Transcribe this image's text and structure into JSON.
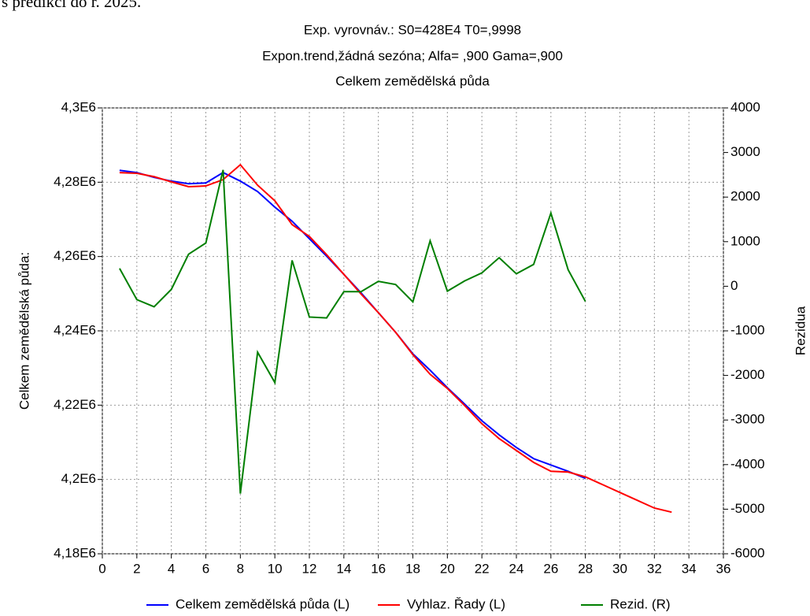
{
  "page_text": "s predikcí do r. 2025.",
  "chart_data": {
    "type": "line",
    "title": "Exp. vyrovnáv.:  S0=428E4 T0=,9998",
    "subtitle": "Expon.trend,žádná sezóna; Alfa=  ,900 Gama=,900",
    "subtitle2": "Celkem zemědělská půda",
    "y_label": "Celkem zemědělská půda:",
    "y2_label": "Rezidua",
    "x": [
      1,
      2,
      3,
      4,
      5,
      6,
      7,
      8,
      9,
      10,
      11,
      12,
      13,
      14,
      15,
      16,
      17,
      18,
      19,
      20,
      21,
      22,
      23,
      24,
      25,
      26,
      27,
      28,
      29,
      30,
      31,
      32,
      33
    ],
    "series": [
      {
        "name": "Celkem zemědělská půda (L)",
        "color": "#0000ff",
        "axis": "y",
        "values": [
          4283200,
          4282600,
          4281300,
          4280300,
          4279600,
          4279800,
          4282600,
          4280300,
          4277500,
          4273300,
          4269500,
          4264800,
          4260100,
          4255200,
          4250200,
          4244900,
          4239600,
          4233800,
          4229400,
          4224700,
          4220300,
          4215800,
          4212000,
          4208600,
          4205600,
          4203900,
          4202200,
          4200300,
          null,
          null,
          null,
          null,
          null
        ]
      },
      {
        "name": "Vyhlaz. Řady (L)",
        "color": "#ff0000",
        "axis": "y",
        "values": [
          4282600,
          4282400,
          4281500,
          4280100,
          4278800,
          4279000,
          4280700,
          4284700,
          4279200,
          4275000,
          4268600,
          4265400,
          4260500,
          4255200,
          4249900,
          4244900,
          4239600,
          4233600,
          4228300,
          4224500,
          4219900,
          4215000,
          4211000,
          4207800,
          4204600,
          4202200,
          4202000,
          4200700,
          4198600,
          4196500,
          4194400,
          4192300,
          4191200
        ]
      },
      {
        "name": "Rezid. (R)",
        "color": "#007f00",
        "axis": "y2",
        "values": [
          400,
          -300,
          -460,
          -70,
          720,
          970,
          2610,
          -4650,
          -1480,
          -2160,
          580,
          -690,
          -710,
          -120,
          -120,
          110,
          40,
          -350,
          1020,
          -110,
          120,
          300,
          640,
          280,
          490,
          1640,
          370,
          -340,
          null,
          null,
          null,
          null,
          null
        ]
      }
    ],
    "xlim": [
      0,
      36
    ],
    "xticks": [
      0,
      2,
      4,
      6,
      8,
      10,
      12,
      14,
      16,
      18,
      20,
      22,
      24,
      26,
      28,
      30,
      32,
      34,
      36
    ],
    "ylim": [
      4180000,
      4300000
    ],
    "yticks": [
      {
        "value": 4180000,
        "label": "4,18E6"
      },
      {
        "value": 4200000,
        "label": "4,2E6"
      },
      {
        "value": 4220000,
        "label": "4,22E6"
      },
      {
        "value": 4240000,
        "label": "4,24E6"
      },
      {
        "value": 4260000,
        "label": "4,26E6"
      },
      {
        "value": 4280000,
        "label": "4,28E6"
      },
      {
        "value": 4300000,
        "label": "4,3E6"
      }
    ],
    "y2lim": [
      -6000,
      4000
    ],
    "y2ticks": [
      -6000,
      -5000,
      -4000,
      -3000,
      -2000,
      -1000,
      0,
      1000,
      2000,
      3000,
      4000
    ],
    "grid": true,
    "legend": "bottom"
  }
}
